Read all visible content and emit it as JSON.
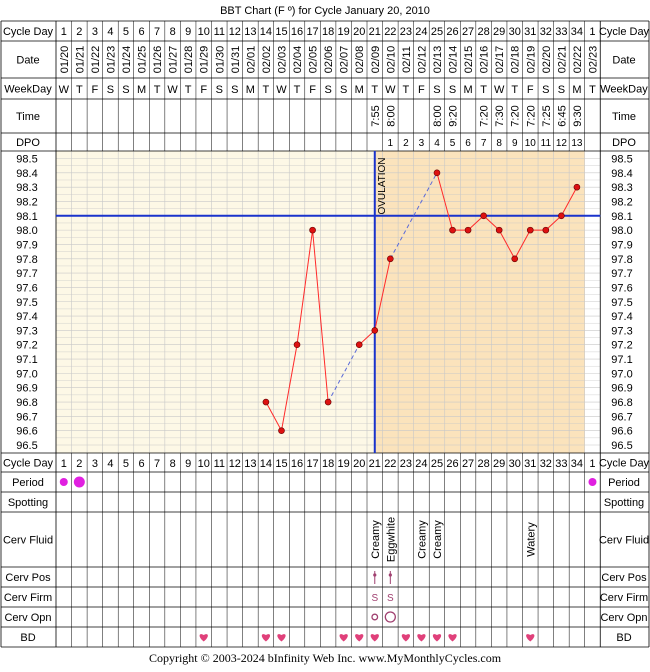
{
  "title": "BBT Chart (F º) for Cycle January 20, 2010",
  "footer": "Copyright © 2003-2024 bInfinity Web Inc.     www.MyMonthlyCycles.com",
  "row_labels": {
    "cycle_day": "Cycle Day",
    "date": "Date",
    "weekday": "WeekDay",
    "time": "Time",
    "dpo": "DPO",
    "period": "Period",
    "spotting": "Spotting",
    "cerv_fluid": "Cerv Fluid",
    "cerv_pos": "Cerv Pos",
    "cerv_firm": "Cerv Firm",
    "cerv_opn": "Cerv Opn",
    "bd": "BD"
  },
  "ovulation_label": "OVULATION",
  "colors": {
    "grid_bg_pre": "#fdf8e6",
    "grid_bg_post": "#fbe3bc",
    "grid_line": "#c8c8c8",
    "data_line": "#ff2a2a",
    "point_fill": "#dd1111",
    "coverline": "#1a33cc",
    "period": "#e020e0",
    "heart": "#e0407a",
    "cerv_mark": "#a04070"
  },
  "chart_data": {
    "type": "line",
    "title": "BBT Chart (F º) for Cycle January 20, 2010",
    "cycle_days": [
      "1",
      "2",
      "3",
      "4",
      "5",
      "6",
      "7",
      "8",
      "9",
      "10",
      "11",
      "12",
      "13",
      "14",
      "15",
      "16",
      "17",
      "18",
      "19",
      "20",
      "21",
      "22",
      "23",
      "24",
      "25",
      "26",
      "27",
      "28",
      "29",
      "30",
      "31",
      "32",
      "33",
      "34",
      "1"
    ],
    "dates": [
      "01/20",
      "01/21",
      "01/22",
      "01/23",
      "01/24",
      "01/25",
      "01/26",
      "01/27",
      "01/28",
      "01/29",
      "01/30",
      "01/31",
      "02/01",
      "02/02",
      "02/03",
      "02/04",
      "02/05",
      "02/06",
      "02/07",
      "02/08",
      "02/09",
      "02/10",
      "02/11",
      "02/12",
      "02/13",
      "02/14",
      "02/15",
      "02/16",
      "02/17",
      "02/18",
      "02/19",
      "02/20",
      "02/21",
      "02/22",
      "02/23"
    ],
    "weekdays": [
      "W",
      "T",
      "F",
      "S",
      "S",
      "M",
      "T",
      "W",
      "T",
      "F",
      "S",
      "S",
      "M",
      "T",
      "W",
      "T",
      "F",
      "S",
      "S",
      "M",
      "T",
      "W",
      "T",
      "F",
      "S",
      "S",
      "M",
      "T",
      "W",
      "T",
      "F",
      "S",
      "S",
      "M",
      "T"
    ],
    "times": [
      "",
      "",
      "",
      "",
      "",
      "",
      "",
      "",
      "",
      "",
      "",
      "",
      "",
      "",
      "",
      "",
      "",
      "",
      "",
      "",
      "7:55",
      "8:00",
      "",
      "",
      "8:00",
      "9:20",
      "",
      "7:20",
      "7:30",
      "7:20",
      "7:20",
      "7:25",
      "6:45",
      "9:30",
      ""
    ],
    "dpo": [
      "",
      "",
      "",
      "",
      "",
      "",
      "",
      "",
      "",
      "",
      "",
      "",
      "",
      "",
      "",
      "",
      "",
      "",
      "",
      "",
      "",
      "1",
      "2",
      "3",
      "4",
      "5",
      "6",
      "7",
      "8",
      "9",
      "10",
      "11",
      "12",
      "13",
      ""
    ],
    "temperatures": [
      null,
      null,
      null,
      null,
      null,
      null,
      null,
      null,
      null,
      null,
      null,
      null,
      null,
      96.8,
      96.6,
      97.2,
      98.0,
      96.8,
      null,
      97.2,
      97.3,
      97.8,
      null,
      null,
      98.4,
      98.0,
      98.0,
      98.1,
      98.0,
      97.8,
      98.0,
      98.0,
      98.1,
      98.3,
      null
    ],
    "y_ticks": [
      "98.5",
      "98.4",
      "98.3",
      "98.2",
      "98.1",
      "98.0",
      "97.9",
      "97.8",
      "97.7",
      "97.6",
      "97.5",
      "97.4",
      "97.3",
      "97.2",
      "97.1",
      "97.0",
      "96.9",
      "96.8",
      "96.7",
      "96.6",
      "96.5"
    ],
    "ylim": [
      96.5,
      98.5
    ],
    "coverline": 98.1,
    "ovulation_day_index": 20,
    "period": [
      "medium",
      "heavy",
      "",
      "",
      "",
      "",
      "",
      "",
      "",
      "",
      "",
      "",
      "",
      "",
      "",
      "",
      "",
      "",
      "",
      "",
      "",
      "",
      "",
      "",
      "",
      "",
      "",
      "",
      "",
      "",
      "",
      "",
      "",
      "",
      "medium"
    ],
    "cerv_fluid": [
      "",
      "",
      "",
      "",
      "",
      "",
      "",
      "",
      "",
      "",
      "",
      "",
      "",
      "",
      "",
      "",
      "",
      "",
      "",
      "",
      "Creamy",
      "Eggwhite",
      "",
      "Creamy",
      "Creamy",
      "",
      "",
      "",
      "",
      "",
      "Watery",
      "",
      "",
      "",
      ""
    ],
    "cerv_pos": [
      20,
      21
    ],
    "cerv_firm": [
      20,
      21
    ],
    "cerv_firm_label": "S",
    "cerv_opn": [
      20,
      21
    ],
    "bd": [
      9,
      13,
      14,
      18,
      19,
      20,
      22,
      23,
      24,
      25,
      30
    ]
  }
}
